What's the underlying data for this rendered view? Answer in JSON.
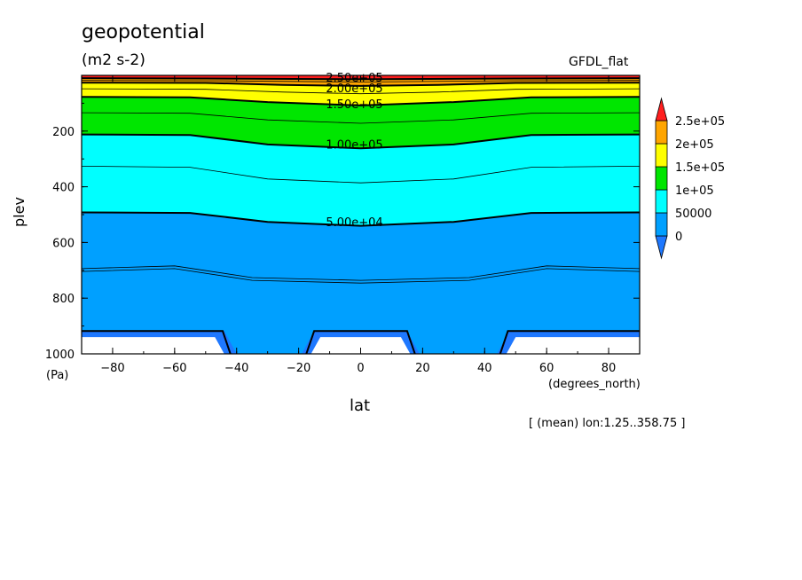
{
  "chart_data": {
    "type": "contour",
    "title": "geopotential",
    "units": "(m2 s-2)",
    "model": "GFDL_flat",
    "xlabel": "lat",
    "xunit": "(degrees_north)",
    "ylabel": "plev",
    "yunit": "(Pa)",
    "note": "[ (mean) lon:1.25..358.75 ]",
    "xlim": [
      -90,
      90
    ],
    "ylim": [
      1000,
      0
    ],
    "xticks": [
      -80,
      -60,
      -40,
      -20,
      0,
      20,
      40,
      60,
      80
    ],
    "xtick_labels": [
      "−80",
      "−60",
      "−40",
      "−20",
      "0",
      "20",
      "40",
      "60",
      "80"
    ],
    "yticks": [
      200,
      400,
      600,
      800,
      1000
    ],
    "ytick_labels": [
      "200",
      "400",
      "600",
      "800",
      "1000"
    ],
    "contour_labels": [
      {
        "text": "2.50e+05",
        "x": -2,
        "y": 6
      },
      {
        "text": "2.00e+05",
        "x": -2,
        "y": 44
      },
      {
        "text": "1.50e+05",
        "x": -2,
        "y": 102
      },
      {
        "text": "1.00e+05",
        "x": -2,
        "y": 247
      },
      {
        "text": "5.00e+04",
        "x": -2,
        "y": 526
      }
    ],
    "colorbar": {
      "levels": [
        "2.5e+05",
        "2e+05",
        "1.5e+05",
        "1e+05",
        "50000",
        "0"
      ],
      "colors": [
        "#1e78ff",
        "#00a0ff",
        "#00ffff",
        "#00e600",
        "#ffff00",
        "#ffa500",
        "#ff1e1e"
      ]
    },
    "colors": {
      "below": "#1e78ff",
      "band_0_50k": "#00a0ff",
      "band_50k_100k": "#00ffff",
      "band_100k_150k": "#00e600",
      "band_150k_200k": "#ffff00",
      "band_200k_250k": "#ffa500",
      "above": "#ff1e1e"
    },
    "legend_position": "right"
  }
}
